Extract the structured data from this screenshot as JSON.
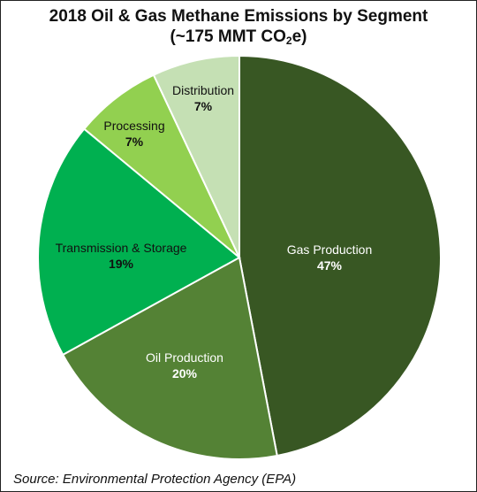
{
  "chart_data": {
    "type": "pie",
    "title": "2018 Oil & Gas Methane Emissions by Segment",
    "subtitle": {
      "prefix": "(~175 MMT CO",
      "subscript": "2",
      "suffix": "e)"
    },
    "slices": [
      {
        "label": "Gas Production",
        "value": 47,
        "value_label": "47%",
        "color": "#385723",
        "text_color": "#ffffff"
      },
      {
        "label": "Oil Production",
        "value": 20,
        "value_label": "20%",
        "color": "#548235",
        "text_color": "#ffffff"
      },
      {
        "label": "Transmission & Storage",
        "value": 19,
        "value_label": "19%",
        "color": "#00b050",
        "text_color": "#111111"
      },
      {
        "label": "Processing",
        "value": 7,
        "value_label": "7%",
        "color": "#92d050",
        "text_color": "#111111"
      },
      {
        "label": "Distribution",
        "value": 7,
        "value_label": "7%",
        "color": "#c5e0b4",
        "text_color": "#111111"
      }
    ],
    "start": "12 o'clock",
    "direction": "clockwise"
  },
  "source": "Source: Environmental Protection Agency (EPA)"
}
